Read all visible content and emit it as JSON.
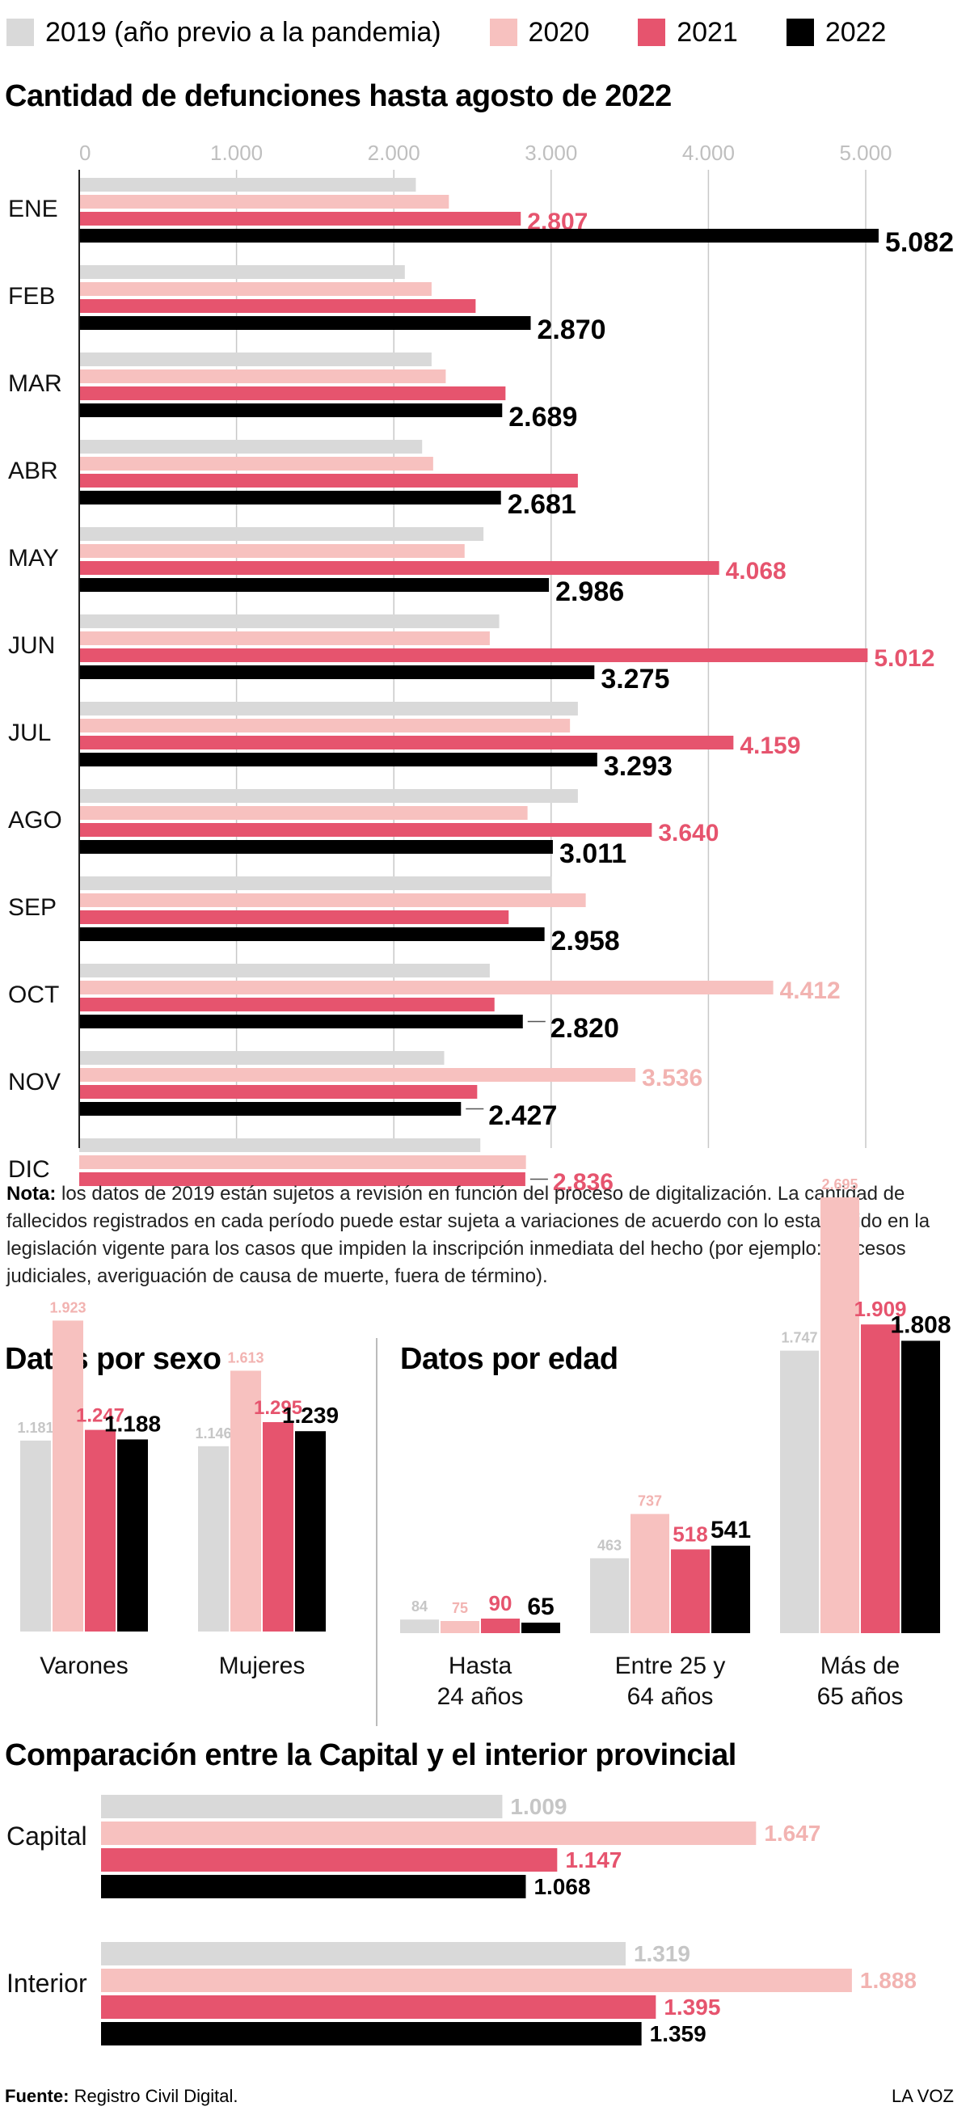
{
  "legend": [
    {
      "label": "2019 (año previo a la pandemia)",
      "color": "#d9d9d9"
    },
    {
      "label": "2020",
      "color": "#f7c1bf"
    },
    {
      "label": "2021",
      "color": "#e6546e"
    },
    {
      "label": "2022",
      "color": "#000000"
    }
  ],
  "titles": {
    "monthly": "Cantidad de defunciones hasta agosto de 2022",
    "sex": "Datos por sexo",
    "age": "Datos por edad",
    "region": "Comparación entre la Capital y el interior provincial"
  },
  "note": {
    "bold": "Nota:",
    "text": " los datos de 2019 están sujetos a revisión en función del proceso de digitalización. La cantidad de fallecidos registrados en cada período puede estar sujeta a variaciones de acuerdo con lo establecido en la legislación vigente para los casos que impiden la inscripción inmediata del hecho (por ejemplo: procesos judiciales, averiguación de causa de muerte, fuera de término)."
  },
  "footer": {
    "source_label": "Fuente:",
    "source_text": " Registro Civil Digital.",
    "brand": "LA VOZ"
  },
  "chart_data": [
    {
      "type": "bar",
      "orientation": "horizontal",
      "title": "Cantidad de defunciones hasta agosto de 2022",
      "categories": [
        "ENE",
        "FEB",
        "MAR",
        "ABR",
        "MAY",
        "JUN",
        "JUL",
        "AGO",
        "SEP",
        "OCT",
        "NOV",
        "DIC"
      ],
      "xlim": [
        0,
        5000
      ],
      "ticks": [
        "0",
        "1.000",
        "2.000",
        "3.000",
        "4.000",
        "5.000"
      ],
      "grid": true,
      "series": [
        {
          "name": "2019 (año previo a la pandemia)",
          "values": [
            2140,
            2070,
            2240,
            2180,
            2570,
            2670,
            3170,
            3170,
            3000,
            2610,
            2320,
            2550
          ],
          "labels": [
            "",
            "",
            "",
            "",
            "",
            "",
            "",
            "",
            "",
            "",
            "",
            ""
          ]
        },
        {
          "name": "2020",
          "values": [
            2350,
            2240,
            2330,
            2250,
            2450,
            2610,
            3120,
            2850,
            3220,
            4412,
            3536,
            2840
          ],
          "labels": [
            "",
            "",
            "",
            "",
            "",
            "",
            "",
            "",
            "",
            "4.412",
            "3.536",
            ""
          ]
        },
        {
          "name": "2021",
          "values": [
            2807,
            2520,
            2710,
            3170,
            4068,
            5012,
            4159,
            3640,
            2730,
            2640,
            2530,
            2836
          ],
          "labels": [
            "2.807",
            "",
            "",
            "",
            "4.068",
            "5.012",
            "4.159",
            "3.640",
            "",
            "",
            "",
            "2.836"
          ]
        },
        {
          "name": "2022",
          "values": [
            5082,
            2870,
            2689,
            2681,
            2986,
            3275,
            3293,
            3011,
            2958,
            2820,
            2427,
            null
          ],
          "labels": [
            "5.082",
            "2.870",
            "2.689",
            "2.681",
            "2.986",
            "3.275",
            "3.293",
            "3.011",
            "2.958",
            "2.820",
            "2.427",
            ""
          ]
        }
      ]
    },
    {
      "type": "bar",
      "title": "Datos por sexo",
      "categories": [
        "Varones",
        "Mujeres"
      ],
      "series": [
        {
          "name": "2019 (año previo a la pandemia)",
          "values": [
            1181,
            1146
          ],
          "labels": [
            "1.181",
            "1.146"
          ]
        },
        {
          "name": "2020",
          "values": [
            1923,
            1613
          ],
          "labels": [
            "1.923",
            "1.613"
          ]
        },
        {
          "name": "2021",
          "values": [
            1247,
            1295
          ],
          "labels": [
            "1.247",
            "1.295"
          ]
        },
        {
          "name": "2022",
          "values": [
            1188,
            1239
          ],
          "labels": [
            "1.188",
            "1.239"
          ]
        }
      ]
    },
    {
      "type": "bar",
      "title": "Datos por edad",
      "categories": [
        "Hasta\n24 años",
        "Entre 25 y\n64 años",
        "Más de\n65 años"
      ],
      "series": [
        {
          "name": "2019 (año previo a la pandemia)",
          "values": [
            84,
            463,
            1747
          ],
          "labels": [
            "84",
            "463",
            "1.747"
          ]
        },
        {
          "name": "2020",
          "values": [
            75,
            737,
            2695
          ],
          "labels": [
            "75",
            "737",
            "2.695"
          ]
        },
        {
          "name": "2021",
          "values": [
            90,
            518,
            1909
          ],
          "labels": [
            "90",
            "518",
            "1.909"
          ]
        },
        {
          "name": "2022",
          "values": [
            65,
            541,
            1808
          ],
          "labels": [
            "65",
            "541",
            "1.808"
          ]
        }
      ]
    },
    {
      "type": "bar",
      "orientation": "horizontal",
      "title": "Comparación entre la Capital y el interior provincial",
      "categories": [
        "Capital",
        "Interior"
      ],
      "series": [
        {
          "name": "2019 (año previo a la pandemia)",
          "values": [
            1009,
            1319
          ],
          "labels": [
            "1.009",
            "1.319"
          ]
        },
        {
          "name": "2020",
          "values": [
            1647,
            1888
          ],
          "labels": [
            "1.647",
            "1.888"
          ]
        },
        {
          "name": "2021",
          "values": [
            1147,
            1395
          ],
          "labels": [
            "1.147",
            "1.395"
          ]
        },
        {
          "name": "2022",
          "values": [
            1068,
            1359
          ],
          "labels": [
            "1.068",
            "1.359"
          ]
        }
      ]
    }
  ]
}
